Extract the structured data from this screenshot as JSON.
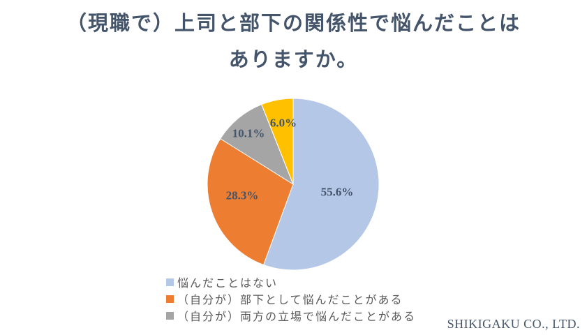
{
  "title": {
    "line1": "（現職で）上司と部下の関係性で悩んだことは",
    "line2": "ありますか。",
    "color": "#44546A"
  },
  "chart_data": {
    "type": "pie",
    "title": "（現職で）上司と部下の関係性で悩んだことはありますか。",
    "direction": "clockwise",
    "start_angle_deg": 0,
    "units": "%",
    "slices": [
      {
        "name": "悩んだことはない",
        "value": 55.6,
        "display": "55.6%",
        "color": "#B4C7E7"
      },
      {
        "name": "（自分が）部下として悩んだことがある",
        "value": 28.3,
        "display": "28.3%",
        "color": "#ED7D31"
      },
      {
        "name": "（自分が）両方の立場で悩んだことがある",
        "value": 10.1,
        "display": "10.1%",
        "color": "#A5A5A5"
      },
      {
        "name": "",
        "value": 6.0,
        "display": "6.0%",
        "color": "#FFC000"
      }
    ],
    "label_color": "#44546A",
    "legend_position": "bottom",
    "legend_visible_items": 3
  },
  "legend": {
    "items": [
      {
        "label": "悩んだことはない",
        "color": "#B4C7E7"
      },
      {
        "label": "（自分が）部下として悩んだことがある",
        "color": "#ED7D31"
      },
      {
        "label": "（自分が）両方の立場で悩んだことがある",
        "color": "#A5A5A5"
      }
    ],
    "text_color": "#595959"
  },
  "footer": {
    "company": "SHIKIGAKU CO., LTD."
  }
}
